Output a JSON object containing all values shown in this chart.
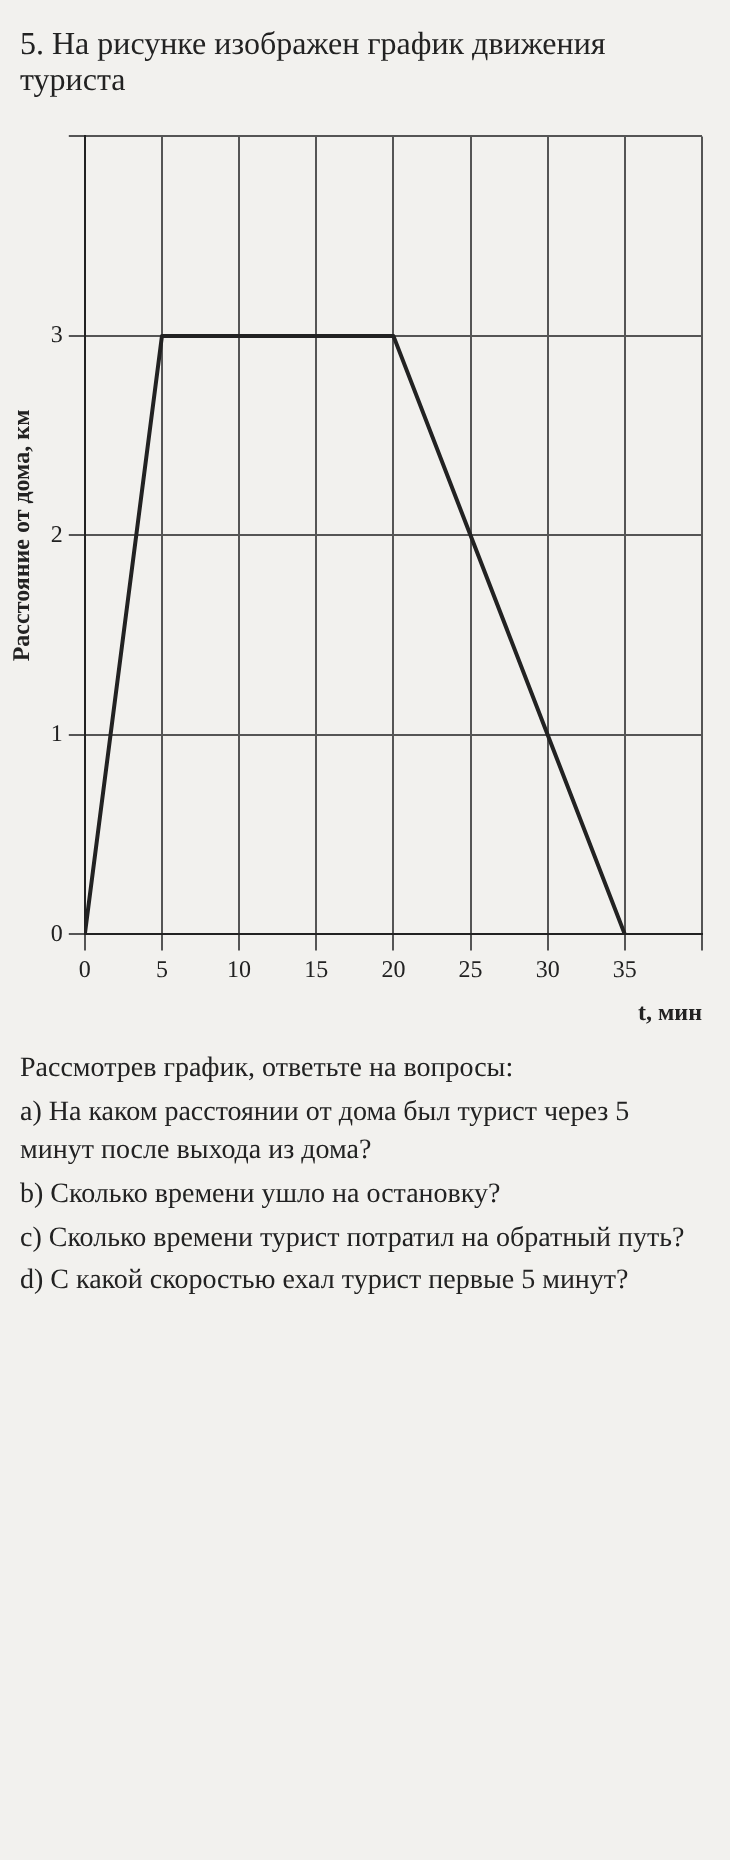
{
  "chart_data": {
    "type": "line",
    "title": "5. На рисунке изображен график движения туриста",
    "ylabel": "Расстояние от дома, км",
    "xlabel": "t, мин",
    "x": [
      0,
      5,
      20,
      35
    ],
    "values": [
      0,
      3,
      3,
      0
    ],
    "color": "#222222",
    "xlim": [
      0,
      40
    ],
    "xticks": [
      0,
      5,
      10,
      15,
      20,
      25,
      30,
      35,
      {
        "value": 40,
        "label": null
      }
    ],
    "ylim": [
      0,
      4
    ],
    "yticks": [
      0,
      1,
      2,
      3,
      {
        "value": 4,
        "label": null
      }
    ],
    "grid": true,
    "marker": "none",
    "line_style": "solid",
    "annotations": [
      "Рассмотрев график, ответьте на вопросы:",
      "a) На каком расстоянии от дома был турист через 5 минут после выхода из дома?",
      "b) Сколько времени ушло на остановку?",
      "c) Сколько времени турист потратил на обратный путь?",
      "d) С какой скоростью ехал турист первые 5 минут?"
    ]
  }
}
